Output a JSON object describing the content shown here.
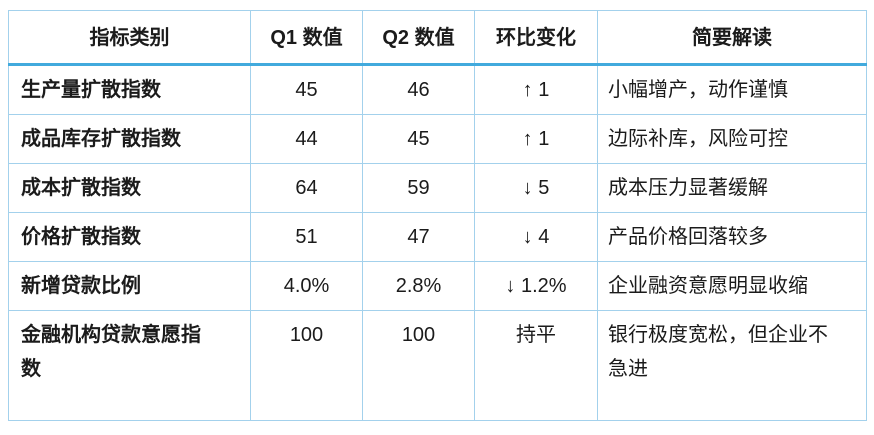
{
  "table": {
    "headers": {
      "indicator": "指标类别",
      "q1": "Q1 数值",
      "q2": "Q2 数值",
      "change": "环比变化",
      "interpretation": "简要解读"
    },
    "rows": [
      {
        "indicator": "生产量扩散指数",
        "q1": "45",
        "q2": "46",
        "change": "↑ 1",
        "interpretation": "小幅增产，动作谨慎"
      },
      {
        "indicator": "成品库存扩散指数",
        "q1": "44",
        "q2": "45",
        "change": "↑ 1",
        "interpretation": "边际补库，风险可控"
      },
      {
        "indicator": "成本扩散指数",
        "q1": "64",
        "q2": "59",
        "change": "↓ 5",
        "interpretation": "成本压力显著缓解"
      },
      {
        "indicator": "价格扩散指数",
        "q1": "51",
        "q2": "47",
        "change": "↓ 4",
        "interpretation": "产品价格回落较多"
      },
      {
        "indicator": "新增贷款比例",
        "q1": "4.0%",
        "q2": "2.8%",
        "change": "↓ 1.2%",
        "interpretation": "企业融资意愿明显收缩"
      },
      {
        "indicator": "金融机构贷款意愿指数",
        "q1": "100",
        "q2": "100",
        "change": "持平",
        "interpretation": "银行极度宽松，但企业不急进"
      }
    ]
  },
  "colors": {
    "border_light": "#a3d1ec",
    "header_rule": "#41aadd",
    "text": "#1b1b1b",
    "background": "#ffffff"
  }
}
